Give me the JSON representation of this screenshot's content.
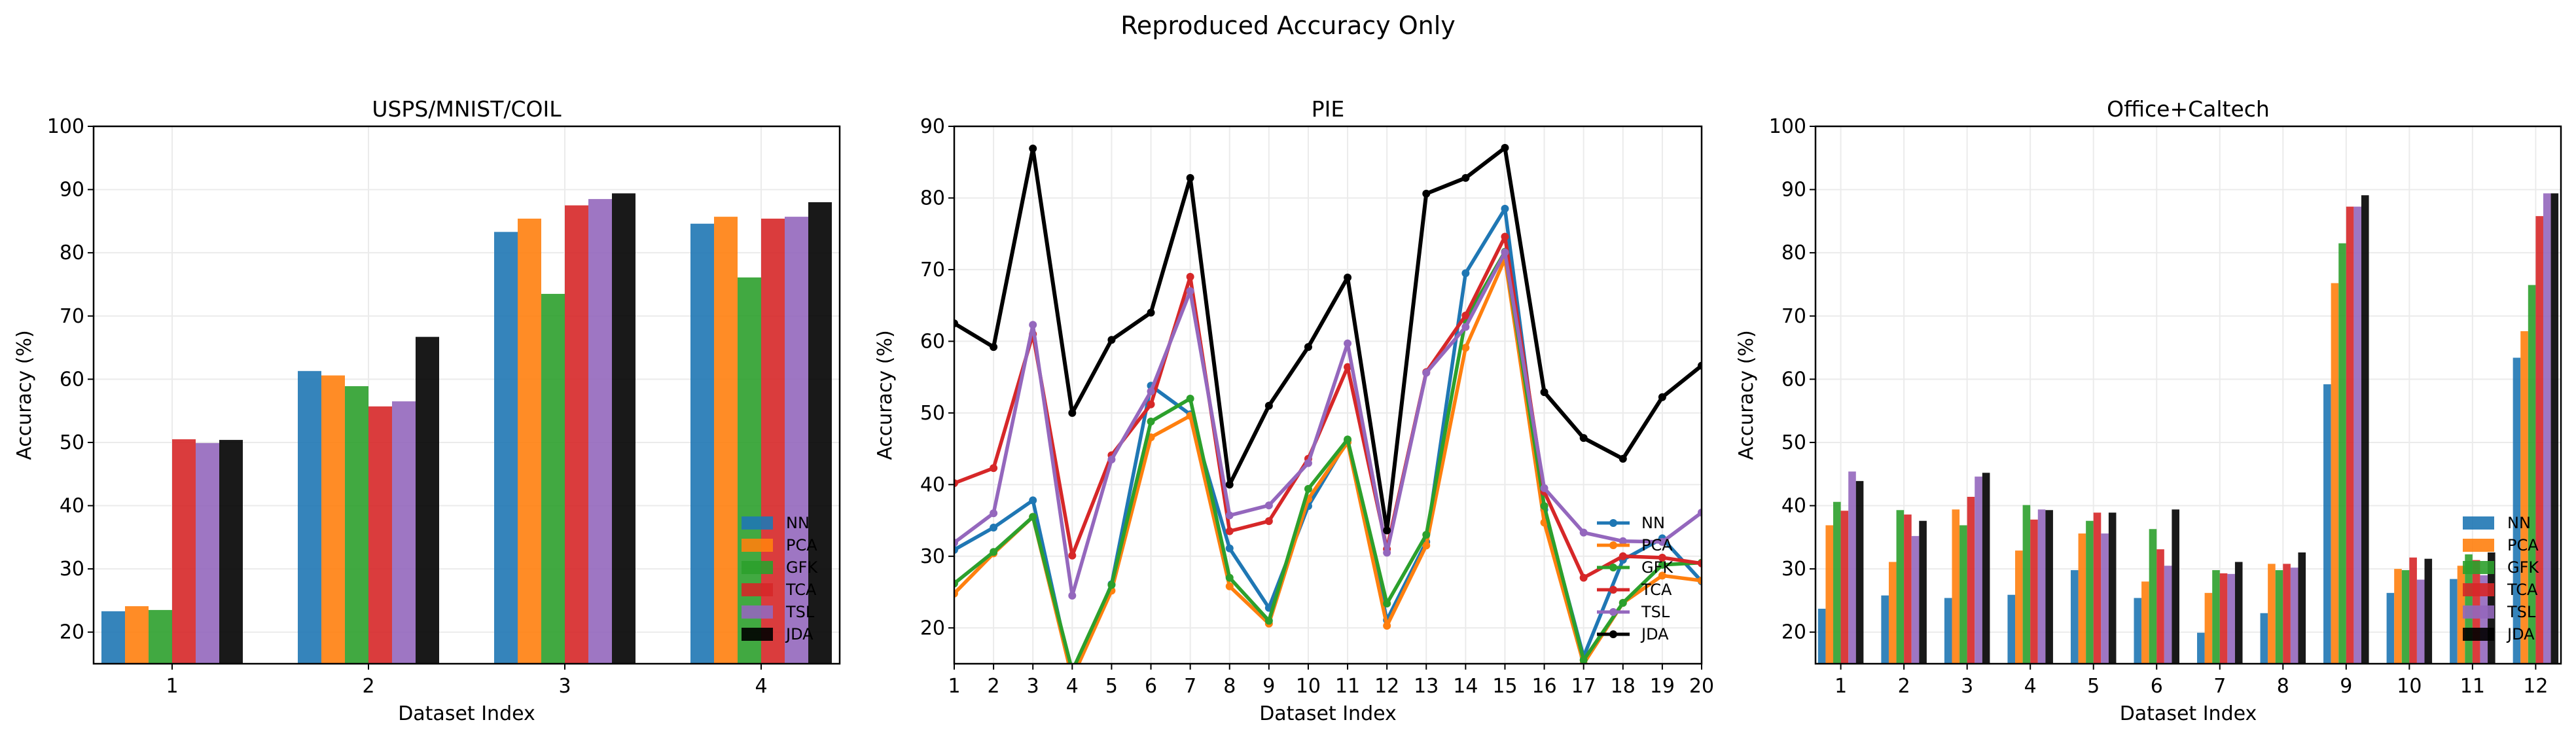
{
  "suptitle": "Reproduced Accuracy Only",
  "colors": {
    "NN": "#1f77b4",
    "PCA": "#ff7f0e",
    "GFK": "#2ca02c",
    "TCA": "#d62728",
    "TSL": "#9467bd",
    "JDA": "#000000"
  },
  "chart_data": [
    {
      "type": "bar",
      "title": "USPS/MNIST/COIL",
      "xlabel": "Dataset Index",
      "ylabel": "Accuracy (%)",
      "categories": [
        "1",
        "2",
        "3",
        "4"
      ],
      "ylim": [
        15,
        100
      ],
      "yticks": [
        20,
        30,
        40,
        50,
        60,
        70,
        80,
        90,
        100
      ],
      "grid": true,
      "legend": "lower-right",
      "series": [
        {
          "name": "NN",
          "values": [
            23.3,
            61.3,
            83.3,
            84.6
          ]
        },
        {
          "name": "PCA",
          "values": [
            24.1,
            60.6,
            85.4,
            85.7
          ]
        },
        {
          "name": "GFK",
          "values": [
            23.5,
            58.9,
            73.5,
            76.1
          ]
        },
        {
          "name": "TCA",
          "values": [
            50.5,
            55.7,
            87.5,
            85.4
          ]
        },
        {
          "name": "TSL",
          "values": [
            49.9,
            56.5,
            88.5,
            85.7
          ]
        },
        {
          "name": "JDA",
          "values": [
            50.4,
            66.7,
            89.4,
            88.0
          ]
        }
      ]
    },
    {
      "type": "line",
      "title": "PIE",
      "xlabel": "Dataset Index",
      "ylabel": "Accuracy (%)",
      "x": [
        1,
        2,
        3,
        4,
        5,
        6,
        7,
        8,
        9,
        10,
        11,
        12,
        13,
        14,
        15,
        16,
        17,
        18,
        19,
        20
      ],
      "xlim": [
        1,
        20
      ],
      "ylim": [
        15,
        90
      ],
      "yticks": [
        20,
        30,
        40,
        50,
        60,
        70,
        80,
        90
      ],
      "grid": true,
      "legend": "lower-right",
      "series": [
        {
          "name": "NN",
          "values": [
            30.9,
            34.0,
            37.8,
            13.0,
            26.1,
            53.8,
            49.8,
            31.1,
            22.8,
            37.0,
            46.2,
            21.1,
            32.0,
            69.5,
            78.5,
            36.5,
            16.0,
            29.5,
            32.5,
            26.5
          ]
        },
        {
          "name": "PCA",
          "values": [
            24.8,
            30.4,
            35.5,
            13.0,
            25.2,
            46.6,
            49.6,
            25.8,
            20.6,
            38.0,
            45.9,
            20.3,
            31.5,
            59.1,
            71.5,
            34.7,
            15.0,
            23.5,
            27.3,
            26.6
          ]
        },
        {
          "name": "GFK",
          "values": [
            26.2,
            30.6,
            35.5,
            14.0,
            26.0,
            48.8,
            52.0,
            27.0,
            21.0,
            39.4,
            46.3,
            23.4,
            33.0,
            63.0,
            72.5,
            37.0,
            15.5,
            23.5,
            28.8,
            29.1
          ]
        },
        {
          "name": "TCA",
          "values": [
            40.2,
            42.3,
            61.0,
            30.1,
            44.1,
            51.2,
            69.0,
            33.5,
            34.9,
            43.6,
            56.4,
            31.0,
            55.7,
            63.6,
            74.6,
            39.0,
            27.0,
            30.0,
            29.8,
            29.0
          ]
        },
        {
          "name": "TSL",
          "values": [
            31.9,
            36.0,
            62.3,
            24.5,
            43.5,
            53.0,
            67.0,
            35.7,
            37.1,
            43.0,
            59.7,
            30.5,
            55.6,
            62.0,
            72.4,
            39.5,
            33.3,
            32.1,
            32.0,
            36.1
          ]
        },
        {
          "name": "JDA",
          "values": [
            62.5,
            59.2,
            86.9,
            50.0,
            60.2,
            64.0,
            82.8,
            40.0,
            51.0,
            59.2,
            68.9,
            33.6,
            80.6,
            82.8,
            87.0,
            52.9,
            46.5,
            43.6,
            52.2,
            56.6
          ]
        }
      ]
    },
    {
      "type": "bar",
      "title": "Office+Caltech",
      "xlabel": "Dataset Index",
      "ylabel": "Accuracy (%)",
      "categories": [
        "1",
        "2",
        "3",
        "4",
        "5",
        "6",
        "7",
        "8",
        "9",
        "10",
        "11",
        "12"
      ],
      "ylim": [
        15,
        100
      ],
      "yticks": [
        20,
        30,
        40,
        50,
        60,
        70,
        80,
        90,
        100
      ],
      "grid": true,
      "legend": "lower-right",
      "series": [
        {
          "name": "NN",
          "values": [
            23.7,
            25.8,
            25.4,
            25.9,
            29.8,
            25.4,
            19.9,
            23.0,
            59.2,
            26.2,
            28.4,
            63.4
          ]
        },
        {
          "name": "PCA",
          "values": [
            36.9,
            31.1,
            39.4,
            32.9,
            35.6,
            28.0,
            26.2,
            30.8,
            75.2,
            30.0,
            30.5,
            67.6
          ]
        },
        {
          "name": "GFK",
          "values": [
            40.6,
            39.3,
            36.9,
            40.1,
            37.6,
            36.3,
            29.8,
            29.8,
            81.5,
            29.8,
            32.3,
            74.9
          ]
        },
        {
          "name": "TCA",
          "values": [
            39.2,
            38.6,
            41.4,
            37.8,
            38.9,
            33.1,
            29.3,
            30.8,
            87.3,
            31.8,
            31.4,
            85.8
          ]
        },
        {
          "name": "TSL",
          "values": [
            45.4,
            35.2,
            44.6,
            39.4,
            35.6,
            30.5,
            29.2,
            30.2,
            87.3,
            28.3,
            29.0,
            89.4
          ]
        },
        {
          "name": "JDA",
          "values": [
            43.9,
            37.6,
            45.2,
            39.3,
            38.9,
            39.4,
            31.1,
            32.6,
            89.1,
            31.6,
            32.6,
            89.4
          ]
        }
      ]
    }
  ]
}
